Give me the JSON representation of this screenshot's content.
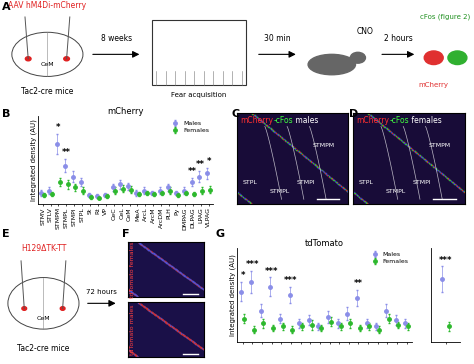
{
  "panel_labels": [
    "A",
    "B",
    "C",
    "D",
    "E",
    "F",
    "G"
  ],
  "schematic_A": {
    "virus": "AAV hM4Di-mCherry",
    "region": "CeM",
    "mice": "Tac2-cre mice",
    "delay": "8 weeks",
    "task": "Fear acquisition",
    "wait": "30 min",
    "drug": "CNO",
    "post": "2 hours",
    "marker1": "mCherry",
    "marker2": "cFos (figure 2)"
  },
  "schematic_E": {
    "virus": "H129ΔTK-TT",
    "region": "CeM",
    "mice": "Tac2-cre mice",
    "delay": "72 hours"
  },
  "images": {
    "C": {
      "title": [
        {
          "text": "mCherry",
          "color": "#ff3030"
        },
        {
          "text": "-cFos",
          "color": "#40ff40"
        },
        {
          "text": " males",
          "color": "#ffffff"
        }
      ],
      "regions": [
        "STMPM",
        "STPL",
        "STMPL",
        "STMPI"
      ]
    },
    "D": {
      "title": [
        {
          "text": "mCherry",
          "color": "#ff3030"
        },
        {
          "text": "-cFos",
          "color": "#40ff40"
        },
        {
          "text": " females",
          "color": "#ffffff"
        }
      ],
      "regions": [
        "STMPM",
        "STPL",
        "STMPL",
        "STMPI"
      ]
    },
    "F": {
      "top": "tdTomato females",
      "bottom": "tdTomato males"
    }
  },
  "chart_data": [
    {
      "type": "scatter",
      "title": "mCherry",
      "y_label": "Integrated density (AU)",
      "categories": [
        "STMV",
        "STLV",
        "STMPM",
        "STMPL",
        "STMPI",
        "STPL",
        "St",
        "Rt",
        "VP",
        "CeC",
        "CeL",
        "CeM",
        "MeA",
        "ArcL",
        "ArcM",
        "ArcDM",
        "PLH",
        "Py",
        "DMPAG",
        "DLPAG",
        "LPAG",
        "VLPAG"
      ],
      "series": [
        {
          "name": "Males",
          "color": "#8a8ee8",
          "marker": "o",
          "values": [
            1.0,
            1.2,
            5.5,
            3.5,
            2.5,
            2.0,
            0.8,
            0.7,
            0.8,
            1.5,
            1.8,
            1.6,
            1.0,
            1.2,
            1.0,
            1.2,
            1.5,
            1.0,
            1.2,
            2.0,
            2.5,
            2.8
          ],
          "errors": [
            0.3,
            0.3,
            0.9,
            0.6,
            0.5,
            0.4,
            0.2,
            0.2,
            0.2,
            0.3,
            0.4,
            0.3,
            0.3,
            0.3,
            0.2,
            0.3,
            0.3,
            0.2,
            0.3,
            0.4,
            0.5,
            0.5
          ]
        },
        {
          "name": "Females",
          "color": "#2db82d",
          "marker": "o",
          "values": [
            0.8,
            0.9,
            2.0,
            1.8,
            1.5,
            1.2,
            0.6,
            0.5,
            0.7,
            1.2,
            1.4,
            1.3,
            0.9,
            1.0,
            0.9,
            1.0,
            1.2,
            0.8,
            1.0,
            0.9,
            1.2,
            1.3
          ],
          "errors": [
            0.2,
            0.2,
            0.4,
            0.4,
            0.3,
            0.3,
            0.2,
            0.1,
            0.2,
            0.3,
            0.3,
            0.3,
            0.2,
            0.2,
            0.2,
            0.2,
            0.3,
            0.2,
            0.2,
            0.2,
            0.3,
            0.3
          ]
        }
      ],
      "ylim": [
        0,
        8
      ],
      "tick_labels": "x",
      "legend": "upper right",
      "annotations": [
        {
          "text": "*",
          "at": 2
        },
        {
          "text": "**",
          "at": 3
        },
        {
          "text": "**",
          "at": 19
        },
        {
          "text": "**",
          "at": 20
        },
        {
          "text": "*",
          "at": 21
        }
      ]
    },
    {
      "type": "scatter",
      "title": "tdTomato",
      "y_label": "Integrated density (AU)",
      "categories": [
        null,
        null,
        null,
        null,
        null,
        null,
        null,
        null,
        null,
        null,
        null,
        null,
        null,
        null,
        null,
        null,
        null,
        null
      ],
      "series": [
        {
          "name": "Males",
          "color": "#8a8ee8",
          "marker": "o",
          "values": [
            3.2,
            3.8,
            2.0,
            3.5,
            1.5,
            3.0,
            1.2,
            1.4,
            1.0,
            1.6,
            1.2,
            1.8,
            2.8,
            1.2,
            1.0,
            2.0,
            1.4,
            1.2
          ],
          "errors": [
            0.6,
            0.7,
            0.4,
            0.6,
            0.3,
            0.5,
            0.3,
            0.3,
            0.2,
            0.4,
            0.3,
            0.4,
            0.5,
            0.3,
            0.2,
            0.4,
            0.3,
            0.3
          ]
        },
        {
          "name": "Females",
          "color": "#2db82d",
          "marker": "o",
          "values": [
            1.5,
            0.8,
            1.2,
            0.9,
            1.0,
            0.8,
            1.0,
            1.1,
            0.9,
            1.3,
            1.0,
            1.2,
            0.9,
            1.0,
            0.8,
            1.5,
            1.1,
            1.0
          ],
          "errors": [
            0.3,
            0.2,
            0.3,
            0.2,
            0.2,
            0.2,
            0.2,
            0.3,
            0.2,
            0.3,
            0.2,
            0.3,
            0.2,
            0.2,
            0.2,
            0.3,
            0.2,
            0.2
          ]
        }
      ],
      "ylim": [
        0,
        6
      ],
      "tick_labels": false,
      "legend": "upper right",
      "annotations": [
        {
          "text": "*",
          "at": 0
        },
        {
          "text": "***",
          "at": 1
        },
        {
          "text": "***",
          "at": 3
        },
        {
          "text": "***",
          "at": 5
        },
        {
          "text": "**",
          "at": 12
        }
      ]
    },
    {
      "type": "scatter",
      "categories": [
        null
      ],
      "series": [
        {
          "name": "Males",
          "color": "#8a8ee8",
          "marker": "o",
          "values": [
            4.0
          ],
          "errors": [
            0.8
          ]
        },
        {
          "name": "Females",
          "color": "#2db82d",
          "marker": "o",
          "values": [
            1.0
          ],
          "errors": [
            0.3
          ]
        }
      ],
      "ylim": [
        0,
        6
      ],
      "tick_labels": false,
      "annotations": [
        {
          "text": "***",
          "at": 0
        }
      ]
    }
  ]
}
